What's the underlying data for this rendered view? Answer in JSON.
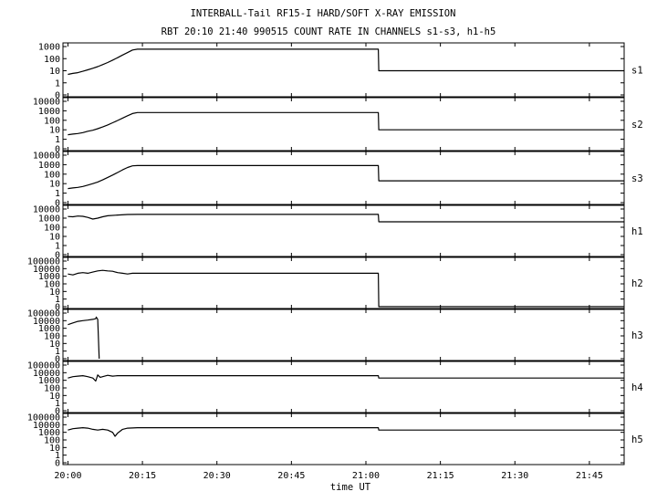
{
  "chart_data": {
    "type": "line",
    "title": "INTERBALL-Tail RF15-I HARD/SOFT X-RAY EMISSION",
    "subtitle": "RBT 20:10 21:40 990515  COUNT RATE IN CHANNELS s1-s3, h1-h5",
    "xlabel": "time UT",
    "x_ticks": [
      "20:00",
      "20:15",
      "20:30",
      "20:45",
      "21:00",
      "21:15",
      "21:30",
      "21:45"
    ],
    "xlim_minutes_after_2000": [
      -1,
      112
    ],
    "y_scale": "log",
    "panels": [
      {
        "name": "s1",
        "y_tick_labels": [
          "1000",
          "100",
          "10",
          "1",
          "0"
        ],
        "y_tick_values": [
          1000,
          100,
          10,
          1,
          0
        ],
        "series": [
          {
            "values": [
              [
                0,
                5
              ],
              [
                1,
                6
              ],
              [
                2,
                7
              ],
              [
                3,
                9
              ],
              [
                4,
                12
              ],
              [
                5,
                16
              ],
              [
                6,
                22
              ],
              [
                7,
                32
              ],
              [
                8,
                48
              ],
              [
                9,
                75
              ],
              [
                10,
                120
              ],
              [
                11,
                200
              ],
              [
                12,
                320
              ],
              [
                13,
                520
              ],
              [
                14,
                600
              ],
              [
                62.5,
                600
              ],
              [
                62.6,
                10
              ],
              [
                112,
                10
              ]
            ]
          }
        ]
      },
      {
        "name": "s2",
        "y_tick_labels": [
          "10000",
          "1000",
          "100",
          "10",
          "1",
          "0"
        ],
        "y_tick_values": [
          10000,
          1000,
          100,
          10,
          1,
          0
        ],
        "series": [
          {
            "values": [
              [
                0,
                3
              ],
              [
                1,
                3.5
              ],
              [
                2,
                4
              ],
              [
                3,
                5
              ],
              [
                4,
                7
              ],
              [
                5,
                9
              ],
              [
                6,
                13
              ],
              [
                7,
                20
              ],
              [
                8,
                32
              ],
              [
                9,
                55
              ],
              [
                10,
                95
              ],
              [
                11,
                170
              ],
              [
                12,
                300
              ],
              [
                13,
                520
              ],
              [
                14,
                650
              ],
              [
                62.5,
                650
              ],
              [
                62.6,
                10
              ],
              [
                112,
                10
              ]
            ]
          }
        ]
      },
      {
        "name": "s3",
        "y_tick_labels": [
          "10000",
          "1000",
          "100",
          "10",
          "1",
          "0"
        ],
        "y_tick_values": [
          10000,
          1000,
          100,
          10,
          1,
          0
        ],
        "series": [
          {
            "values": [
              [
                0,
                3
              ],
              [
                1,
                3.5
              ],
              [
                2,
                4
              ],
              [
                3,
                5
              ],
              [
                4,
                7
              ],
              [
                5,
                10
              ],
              [
                6,
                15
              ],
              [
                7,
                25
              ],
              [
                8,
                45
              ],
              [
                9,
                80
              ],
              [
                10,
                150
              ],
              [
                11,
                280
              ],
              [
                12,
                500
              ],
              [
                13,
                750
              ],
              [
                14,
                800
              ],
              [
                62.5,
                800
              ],
              [
                62.6,
                20
              ],
              [
                112,
                20
              ]
            ]
          }
        ]
      },
      {
        "name": "h1",
        "y_tick_labels": [
          "10000",
          "1000",
          "100",
          "10",
          "1",
          "0"
        ],
        "y_tick_values": [
          10000,
          1000,
          100,
          10,
          1,
          0
        ],
        "series": [
          {
            "values": [
              [
                0,
                1500
              ],
              [
                1,
                1400
              ],
              [
                2,
                1700
              ],
              [
                3,
                1600
              ],
              [
                4,
                1200
              ],
              [
                5,
                800
              ],
              [
                6,
                1000
              ],
              [
                7,
                1400
              ],
              [
                8,
                1800
              ],
              [
                10,
                2200
              ],
              [
                12,
                2500
              ],
              [
                14,
                2600
              ],
              [
                62.5,
                2600
              ],
              [
                62.6,
                400
              ],
              [
                112,
                400
              ]
            ]
          }
        ]
      },
      {
        "name": "h2",
        "y_tick_labels": [
          "100000",
          "10000",
          "1000",
          "100",
          "10",
          "1",
          "0"
        ],
        "y_tick_values": [
          100000,
          10000,
          1000,
          100,
          10,
          1,
          0
        ],
        "series": [
          {
            "values": [
              [
                0,
                2000
              ],
              [
                1,
                1500
              ],
              [
                2,
                2500
              ],
              [
                3,
                3000
              ],
              [
                4,
                2500
              ],
              [
                5,
                3500
              ],
              [
                6,
                5000
              ],
              [
                7,
                6000
              ],
              [
                8,
                5000
              ],
              [
                9,
                4500
              ],
              [
                10,
                3000
              ],
              [
                11,
                2500
              ],
              [
                12,
                2000
              ],
              [
                13,
                2500
              ],
              [
                14,
                2500
              ],
              [
                62.5,
                2500
              ],
              [
                62.6,
                0
              ],
              [
                112,
                0
              ]
            ]
          }
        ]
      },
      {
        "name": "h3",
        "y_tick_labels": [
          "100000",
          "10000",
          "1000",
          "100",
          "10",
          "1",
          "0"
        ],
        "y_tick_values": [
          100000,
          10000,
          1000,
          100,
          10,
          1,
          0
        ],
        "series": [
          {
            "values": [
              [
                0,
                3000
              ],
              [
                1,
                5000
              ],
              [
                2,
                8000
              ],
              [
                3,
                10000
              ],
              [
                4,
                12000
              ],
              [
                5,
                15000
              ],
              [
                5.6,
                18000
              ],
              [
                5.7,
                30000
              ],
              [
                6,
                15000
              ],
              [
                6.3,
                0
              ]
            ]
          }
        ]
      },
      {
        "name": "h4",
        "y_tick_labels": [
          "100000",
          "10000",
          "1000",
          "100",
          "10",
          "1",
          "0"
        ],
        "y_tick_values": [
          100000,
          10000,
          1000,
          100,
          10,
          1,
          0
        ],
        "series": [
          {
            "values": [
              [
                0,
                2000
              ],
              [
                1,
                3000
              ],
              [
                2,
                3500
              ],
              [
                3,
                4000
              ],
              [
                4,
                3000
              ],
              [
                5,
                2000
              ],
              [
                5.6,
                800
              ],
              [
                6,
                5000
              ],
              [
                6.5,
                2500
              ],
              [
                7,
                3000
              ],
              [
                8,
                4500
              ],
              [
                9,
                3500
              ],
              [
                10,
                4000
              ],
              [
                12,
                4000
              ],
              [
                14,
                4000
              ],
              [
                62.5,
                4000
              ],
              [
                62.6,
                2000
              ],
              [
                112,
                2000
              ]
            ]
          }
        ]
      },
      {
        "name": "h5",
        "y_tick_labels": [
          "100000",
          "10000",
          "1000",
          "100",
          "10",
          "1",
          "0"
        ],
        "y_tick_values": [
          100000,
          10000,
          1000,
          100,
          10,
          1,
          0
        ],
        "series": [
          {
            "values": [
              [
                0,
                2000
              ],
              [
                1,
                3000
              ],
              [
                2,
                3500
              ],
              [
                3,
                4000
              ],
              [
                4,
                3500
              ],
              [
                5,
                2500
              ],
              [
                6,
                2000
              ],
              [
                7,
                2500
              ],
              [
                8,
                2000
              ],
              [
                9,
                1000
              ],
              [
                9.5,
                300
              ],
              [
                10,
                800
              ],
              [
                11,
                2500
              ],
              [
                12,
                3500
              ],
              [
                14,
                4000
              ],
              [
                62.5,
                4000
              ],
              [
                62.6,
                2000
              ],
              [
                112,
                2000
              ]
            ]
          }
        ]
      }
    ]
  }
}
